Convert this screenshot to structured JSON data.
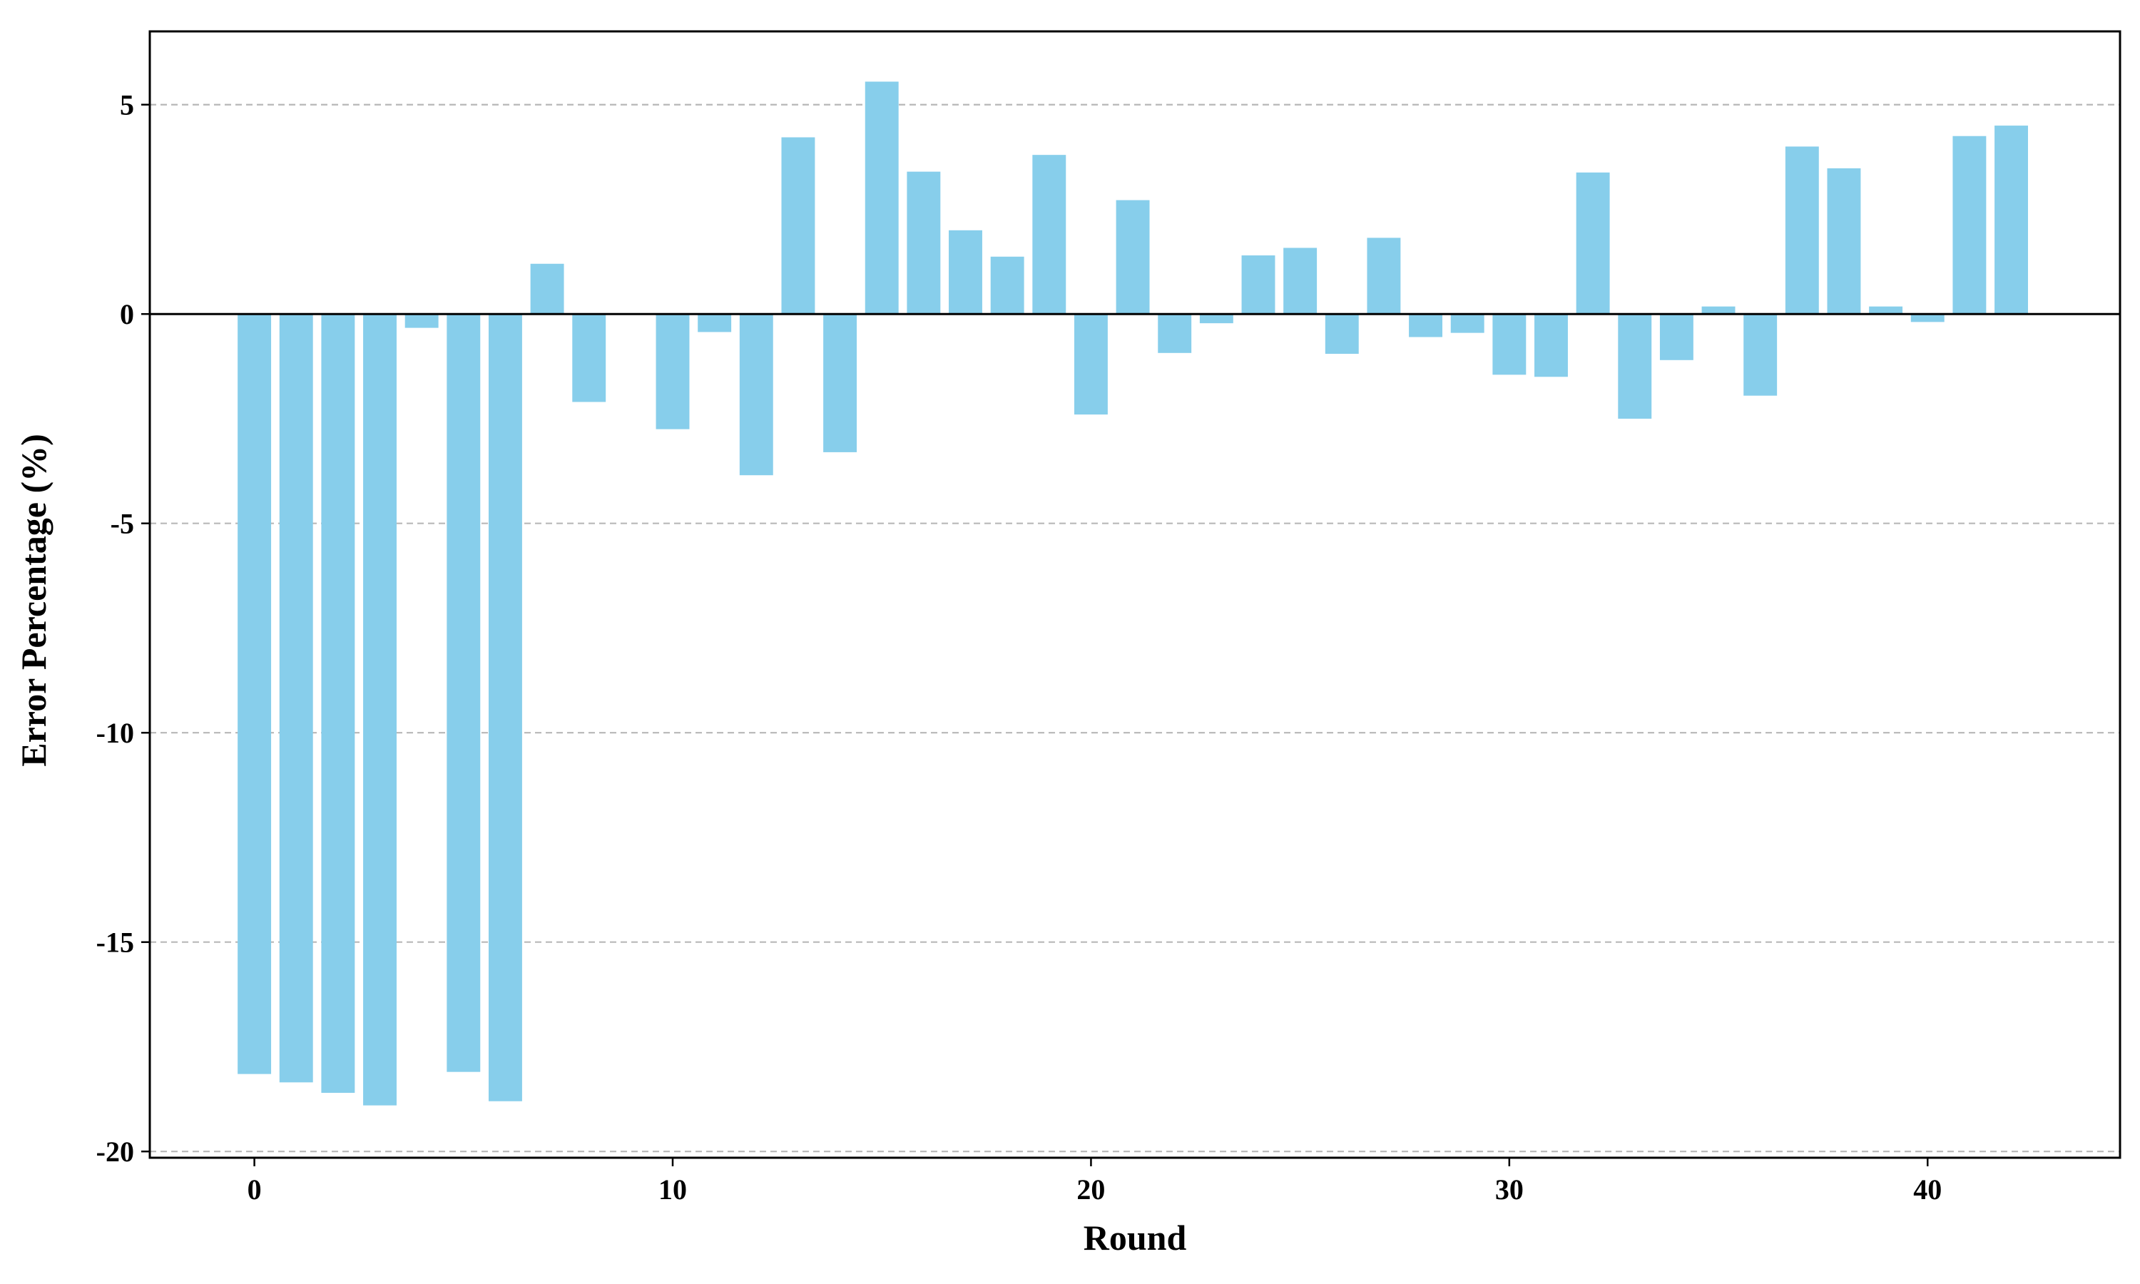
{
  "chart_data": {
    "type": "bar",
    "title": "",
    "xlabel": "Round",
    "ylabel": "Error Percentage (%)",
    "x_ticks": [
      0,
      10,
      20,
      30,
      40
    ],
    "y_ticks": [
      5,
      0,
      -5,
      -10,
      -15,
      -20
    ],
    "xlim": [
      -2.5,
      44.6
    ],
    "ylim": [
      -20.15,
      6.75
    ],
    "grid": "y, dashed",
    "zero_line": true,
    "bar_color": "#87ceeb",
    "x": [
      0,
      1,
      2,
      3,
      4,
      5,
      6,
      7,
      8,
      9,
      10,
      11,
      12,
      13,
      14,
      15,
      16,
      17,
      18,
      19,
      20,
      21,
      22,
      23,
      24,
      25,
      26,
      27,
      28,
      29,
      30,
      31,
      32,
      33,
      34,
      35,
      36,
      37,
      38,
      39,
      40,
      41,
      42
    ],
    "values": [
      -18.15,
      -18.35,
      -18.6,
      -18.9,
      -0.33,
      -18.1,
      -18.8,
      1.2,
      -2.1,
      0,
      -2.75,
      -0.43,
      -3.85,
      4.22,
      -3.3,
      5.55,
      3.4,
      2.0,
      1.37,
      3.8,
      -2.4,
      2.72,
      -0.93,
      -0.22,
      1.4,
      1.58,
      -0.95,
      1.82,
      -0.55,
      -0.45,
      -1.45,
      -1.5,
      3.38,
      -2.5,
      -1.1,
      0.18,
      -1.95,
      4.0,
      3.48,
      0.18,
      -0.19,
      4.25,
      4.5
    ]
  }
}
